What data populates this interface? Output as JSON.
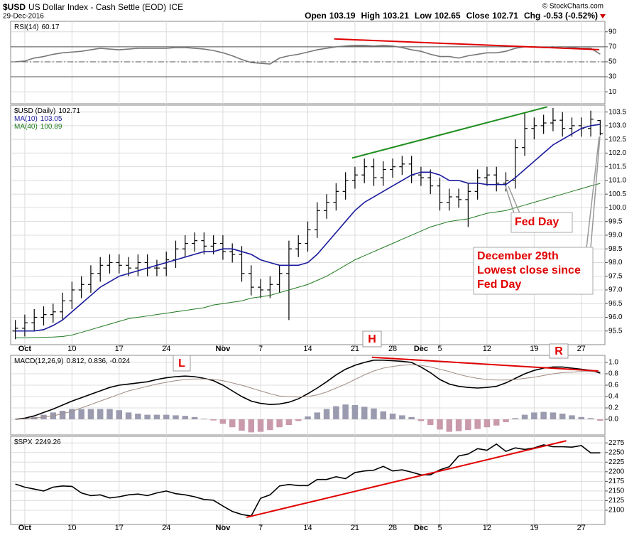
{
  "header": {
    "symbol": "$USD",
    "name": "US Dollar Index - Cash Settle (EOD)",
    "exchange": "ICE",
    "date": "29-Dec-2016",
    "source": "© StockCharts.com",
    "ohlc_labels": [
      "Open",
      "High",
      "Low",
      "Close",
      "Chg"
    ],
    "change": "-0.53 (-0.52%)"
  },
  "annotations": {
    "fed_day": "Fed Day",
    "note": [
      "December 29th",
      "Lowest close since",
      "Fed Day"
    ],
    "peaks": [
      "H",
      "L",
      "R"
    ]
  },
  "chart_data": [
    {
      "type": "line",
      "ylim": [
        -6,
        104
      ],
      "yticks": [
        10,
        30,
        50,
        70,
        90
      ],
      "grid": true,
      "hlines": [
        {
          "value": 70,
          "style": "solid",
          "fill": "#a39c8f"
        },
        {
          "value": 50,
          "style": "dashdot"
        },
        {
          "value": 30,
          "style": "solid"
        }
      ],
      "series": [
        {
          "name": "RSI(14)",
          "color": "#777777",
          "values": [
            50,
            51,
            55,
            57,
            60,
            62,
            63,
            64,
            66,
            68,
            67,
            66,
            67,
            68,
            68,
            68,
            68,
            69,
            69,
            68,
            67,
            65,
            62,
            58,
            53,
            49,
            48,
            47,
            55,
            58,
            60,
            63,
            66,
            68,
            70,
            71,
            72,
            72,
            71,
            72,
            71,
            69,
            66,
            64,
            60,
            57,
            57,
            55,
            58,
            60,
            62,
            62,
            64,
            68,
            70,
            70,
            69,
            70,
            68,
            69,
            68,
            68,
            60.17
          ]
        }
      ],
      "trendlines": [
        {
          "x": [
            33.8,
            61.9
          ],
          "y": [
            80.5,
            66.2
          ],
          "color": "#e00000"
        }
      ]
    },
    {
      "type": "ohlc",
      "ylim": [
        95.0,
        103.75
      ],
      "grid": true,
      "yticks": [
        95.5,
        {
          "value": 96,
          "label": "96.0"
        },
        96.5,
        {
          "value": 97,
          "label": "97.0"
        },
        97.5,
        {
          "value": 98,
          "label": "98.0"
        },
        98.5,
        {
          "value": 99,
          "label": "99.0"
        },
        99.5,
        {
          "value": 100,
          "label": "100.0"
        },
        100.5,
        {
          "value": 101,
          "label": "101.0"
        },
        101.5,
        {
          "value": 102,
          "label": "102.0"
        },
        102.5,
        {
          "value": 103,
          "label": "103.0"
        },
        103.5
      ],
      "categories": [
        null,
        "Oct",
        null,
        null,
        null,
        null,
        "10",
        null,
        null,
        null,
        null,
        "17",
        null,
        null,
        null,
        null,
        "24",
        null,
        null,
        null,
        null,
        null,
        "Nov",
        null,
        null,
        null,
        "7",
        null,
        null,
        null,
        null,
        "14",
        null,
        null,
        null,
        null,
        "21",
        null,
        null,
        null,
        "28",
        null,
        null,
        "Dec",
        null,
        "5",
        null,
        null,
        null,
        null,
        "12",
        null,
        null,
        null,
        null,
        "19",
        null,
        null,
        null,
        null,
        "27",
        null,
        null
      ],
      "ohlc": {
        "name": "$USD (Daily)",
        "color": "#000000",
        "open": [
          95.5,
          95.6,
          95.8,
          96.0,
          96.1,
          96.2,
          96.6,
          97.0,
          97.2,
          97.6,
          97.9,
          98.0,
          97.9,
          97.8,
          98.0,
          97.8,
          97.8,
          98.1,
          98.5,
          98.7,
          98.8,
          98.6,
          98.7,
          98.4,
          98.3,
          97.6,
          97.1,
          97.0,
          97.2,
          97.6,
          98.5,
          98.7,
          99.2,
          99.9,
          100.2,
          100.6,
          101.0,
          101.2,
          101.5,
          101.1,
          101.4,
          101.5,
          101.6,
          101.2,
          101.1,
          100.8,
          100.2,
          100.4,
          100.3,
          100.6,
          101.1,
          101.2,
          100.9,
          101.0,
          102.2,
          102.9,
          103.0,
          103.1,
          103.2,
          102.9,
          103.0,
          102.9,
          103.19
        ],
        "high": [
          95.9,
          96.1,
          96.3,
          96.4,
          96.5,
          96.9,
          97.3,
          97.5,
          97.9,
          98.2,
          98.3,
          98.3,
          98.2,
          98.3,
          98.3,
          98.1,
          98.4,
          98.8,
          99.0,
          99.1,
          99.1,
          99.0,
          99.0,
          98.7,
          98.6,
          97.9,
          97.4,
          97.5,
          97.9,
          98.8,
          99.0,
          99.5,
          100.2,
          100.5,
          100.9,
          101.3,
          101.5,
          101.8,
          101.8,
          101.7,
          101.8,
          101.9,
          101.9,
          101.5,
          101.4,
          101.1,
          100.7,
          100.7,
          100.9,
          101.4,
          101.5,
          101.5,
          101.3,
          102.5,
          103.5,
          103.3,
          103.4,
          103.65,
          103.5,
          103.3,
          103.3,
          103.55,
          103.21
        ],
        "low": [
          95.2,
          95.3,
          95.5,
          95.7,
          95.8,
          95.9,
          96.3,
          96.7,
          96.9,
          97.3,
          97.6,
          97.6,
          97.5,
          97.5,
          97.5,
          97.5,
          97.5,
          97.8,
          98.2,
          98.4,
          98.3,
          98.3,
          98.1,
          98.0,
          97.3,
          96.8,
          96.7,
          96.7,
          96.9,
          95.9,
          98.2,
          98.4,
          98.9,
          99.6,
          99.9,
          100.3,
          100.7,
          100.9,
          100.8,
          100.8,
          101.1,
          101.2,
          100.9,
          100.8,
          100.5,
          99.9,
          99.9,
          100.0,
          99.3,
          100.3,
          100.8,
          100.6,
          100.6,
          100.7,
          101.9,
          102.5,
          102.7,
          102.8,
          102.6,
          102.6,
          102.6,
          102.6,
          102.65
        ],
        "close": [
          95.6,
          95.8,
          96.0,
          96.1,
          96.2,
          96.6,
          97.0,
          97.2,
          97.6,
          97.9,
          98.0,
          97.9,
          97.8,
          98.0,
          97.8,
          97.8,
          98.1,
          98.5,
          98.7,
          98.8,
          98.6,
          98.7,
          98.4,
          98.3,
          97.6,
          97.1,
          97.0,
          97.2,
          97.6,
          98.5,
          98.7,
          99.2,
          99.9,
          100.2,
          100.6,
          101.0,
          101.2,
          101.5,
          101.1,
          101.4,
          101.5,
          101.6,
          101.2,
          101.1,
          100.8,
          100.2,
          100.4,
          100.3,
          100.6,
          101.1,
          101.2,
          100.9,
          101.0,
          102.2,
          102.9,
          103.0,
          103.1,
          103.2,
          102.9,
          103.0,
          102.9,
          103.24,
          102.71
        ]
      },
      "series": [
        {
          "name": "MA(10)",
          "color": "#1a1a9c",
          "values": [
            95.5,
            95.5,
            95.5,
            95.55,
            95.7,
            95.9,
            96.2,
            96.5,
            96.8,
            97.1,
            97.3,
            97.5,
            97.6,
            97.7,
            97.8,
            97.9,
            98.0,
            98.1,
            98.2,
            98.3,
            98.4,
            98.4,
            98.5,
            98.5,
            98.4,
            98.3,
            98.1,
            98.0,
            97.9,
            97.9,
            97.9,
            98.0,
            98.3,
            98.7,
            99.1,
            99.5,
            99.9,
            100.2,
            100.4,
            100.6,
            100.8,
            101.0,
            101.2,
            101.3,
            101.3,
            101.2,
            101.0,
            101.0,
            100.9,
            100.9,
            100.85,
            100.85,
            100.85,
            101.1,
            101.4,
            101.7,
            102.0,
            102.3,
            102.5,
            102.7,
            102.9,
            103.0,
            103.05
          ]
        },
        {
          "name": "MA(40)",
          "color": "#1f7a1f",
          "values": [
            95.25,
            95.25,
            95.26,
            95.27,
            95.28,
            95.3,
            95.35,
            95.45,
            95.55,
            95.65,
            95.75,
            95.85,
            95.95,
            96.0,
            96.05,
            96.1,
            96.15,
            96.2,
            96.25,
            96.3,
            96.35,
            96.45,
            96.5,
            96.55,
            96.6,
            96.7,
            96.75,
            96.8,
            96.9,
            97.0,
            97.1,
            97.2,
            97.35,
            97.5,
            97.7,
            97.9,
            98.1,
            98.25,
            98.4,
            98.55,
            98.7,
            98.85,
            99.0,
            99.15,
            99.3,
            99.4,
            99.5,
            99.55,
            99.6,
            99.7,
            99.8,
            99.85,
            99.9,
            100.0,
            100.1,
            100.2,
            100.3,
            100.4,
            100.5,
            100.6,
            100.7,
            100.8,
            100.89
          ]
        }
      ],
      "trendlines": [
        {
          "x": [
            35.7,
            56.4
          ],
          "y": [
            101.82,
            103.69
          ],
          "color": "#1f8f1f"
        }
      ]
    },
    {
      "type": "line",
      "ylim": [
        -0.275,
        1.125
      ],
      "grid": true,
      "yticks": [
        {
          "value": 0,
          "label": "0.0"
        },
        0.2,
        0.4,
        0.6,
        0.8,
        {
          "value": 1,
          "label": "1.0"
        }
      ],
      "series": [
        {
          "name": "MACD(12,26,9)",
          "color": "#000000",
          "values": [
            0.0,
            0.02,
            0.06,
            0.12,
            0.18,
            0.25,
            0.32,
            0.38,
            0.44,
            0.5,
            0.56,
            0.6,
            0.62,
            0.64,
            0.66,
            0.7,
            0.73,
            0.75,
            0.76,
            0.75,
            0.72,
            0.68,
            0.6,
            0.5,
            0.4,
            0.32,
            0.28,
            0.26,
            0.27,
            0.3,
            0.36,
            0.45,
            0.55,
            0.66,
            0.78,
            0.88,
            0.95,
            1.0,
            1.04,
            1.04,
            1.03,
            1.02,
            1.0,
            0.92,
            0.82,
            0.7,
            0.62,
            0.58,
            0.56,
            0.55,
            0.56,
            0.58,
            0.64,
            0.72,
            0.8,
            0.86,
            0.9,
            0.92,
            0.92,
            0.9,
            0.88,
            0.86,
            0.812
          ]
        },
        {
          "color": "#a08a82",
          "values": [
            0.0,
            0.01,
            0.02,
            0.04,
            0.06,
            0.1,
            0.14,
            0.2,
            0.26,
            0.32,
            0.38,
            0.44,
            0.5,
            0.54,
            0.58,
            0.62,
            0.65,
            0.68,
            0.7,
            0.71,
            0.71,
            0.7,
            0.68,
            0.64,
            0.6,
            0.55,
            0.5,
            0.45,
            0.41,
            0.4,
            0.39,
            0.4,
            0.43,
            0.48,
            0.55,
            0.62,
            0.7,
            0.78,
            0.85,
            0.9,
            0.93,
            0.95,
            0.96,
            0.95,
            0.92,
            0.88,
            0.84,
            0.79,
            0.75,
            0.72,
            0.7,
            0.69,
            0.69,
            0.7,
            0.72,
            0.74,
            0.77,
            0.8,
            0.82,
            0.83,
            0.84,
            0.84,
            0.836
          ]
        },
        {
          "type": "bar",
          "color": "#9b9bb0",
          "negative_color": "#c99aab",
          "values": [
            0,
            0.01,
            0.04,
            0.08,
            0.12,
            0.15,
            0.18,
            0.18,
            0.18,
            0.18,
            0.18,
            0.16,
            0.12,
            0.1,
            0.08,
            0.08,
            0.08,
            0.07,
            0.06,
            0.04,
            0.01,
            -0.02,
            -0.08,
            -0.14,
            -0.2,
            -0.23,
            -0.22,
            -0.19,
            -0.14,
            -0.1,
            -0.03,
            0.05,
            0.12,
            0.18,
            0.23,
            0.26,
            0.25,
            0.22,
            0.19,
            0.14,
            0.1,
            0.07,
            0.04,
            -0.03,
            -0.1,
            -0.18,
            -0.22,
            -0.21,
            -0.19,
            -0.17,
            -0.14,
            -0.11,
            -0.05,
            0.02,
            0.08,
            0.12,
            0.13,
            0.12,
            0.1,
            0.07,
            0.04,
            0.02,
            -0.024
          ]
        }
      ],
      "trendlines": [
        {
          "x": [
            37.8,
            61.8
          ],
          "y": [
            1.09,
            0.85
          ],
          "color": "#e00000"
        }
      ]
    },
    {
      "type": "line",
      "ylim": [
        2063,
        2292
      ],
      "grid": true,
      "yticks": [
        2100,
        2125,
        2150,
        2175,
        2200,
        2225,
        2250,
        2275
      ],
      "series": [
        {
          "name": "$SPX",
          "color": "#000000",
          "values": [
            2168,
            2160,
            2155,
            2150,
            2160,
            2163,
            2162,
            2145,
            2138,
            2140,
            2132,
            2135,
            2140,
            2142,
            2138,
            2145,
            2150,
            2143,
            2140,
            2135,
            2128,
            2126,
            2111,
            2097,
            2089,
            2085,
            2131,
            2140,
            2163,
            2167,
            2164,
            2164,
            2180,
            2180,
            2187,
            2182,
            2198,
            2202,
            2204,
            2214,
            2202,
            2205,
            2199,
            2192,
            2192,
            2205,
            2213,
            2241,
            2246,
            2260,
            2256,
            2272,
            2253,
            2262,
            2258,
            2262,
            2270,
            2265,
            2265,
            2264,
            2268,
            2249,
            2249.26
          ]
        }
      ],
      "trendlines": [
        {
          "x": [
            24.5,
            58.4
          ],
          "y": [
            2081.6,
            2280.5
          ],
          "color": "#e00000"
        }
      ]
    }
  ]
}
